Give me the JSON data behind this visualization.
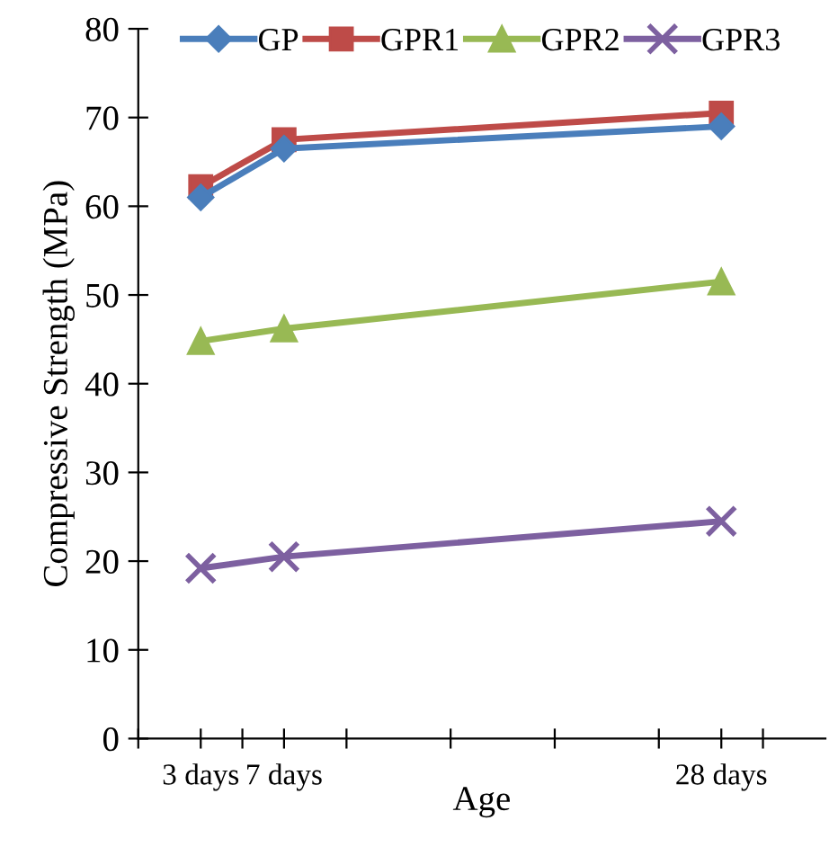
{
  "chart_data": {
    "type": "line",
    "xlabel": "Age",
    "ylabel": "Compressive Strength (MPa)",
    "x": [
      3,
      7,
      28
    ],
    "xlim": [
      0,
      33
    ],
    "xticks": [
      {
        "value": 0,
        "label": null
      },
      {
        "value": 3,
        "label": "3 days"
      },
      {
        "value": 5,
        "label": null
      },
      {
        "value": 7,
        "label": "7 days"
      },
      {
        "value": 10,
        "label": null
      },
      {
        "value": 15,
        "label": null
      },
      {
        "value": 20,
        "label": null
      },
      {
        "value": 25,
        "label": null
      },
      {
        "value": 28,
        "label": "28 days"
      },
      {
        "value": 30,
        "label": null
      }
    ],
    "ylim": [
      0,
      80
    ],
    "yticks": [
      0,
      10,
      20,
      30,
      40,
      50,
      60,
      70,
      80
    ],
    "grid": false,
    "legend": "top",
    "line_style": "solid",
    "series": [
      {
        "name": "GP",
        "color": "#4a7ebb",
        "marker": "diamond",
        "values": [
          61,
          66.5,
          69
        ]
      },
      {
        "name": "GPR1",
        "color": "#be4b48",
        "marker": "square",
        "values": [
          62.2,
          67.5,
          70.5
        ]
      },
      {
        "name": "GPR2",
        "color": "#98b954",
        "marker": "triangle",
        "values": [
          44.8,
          46.2,
          51.5
        ]
      },
      {
        "name": "GPR3",
        "color": "#7d60a0",
        "marker": "cross",
        "values": [
          19.2,
          20.5,
          24.5
        ]
      }
    ]
  }
}
